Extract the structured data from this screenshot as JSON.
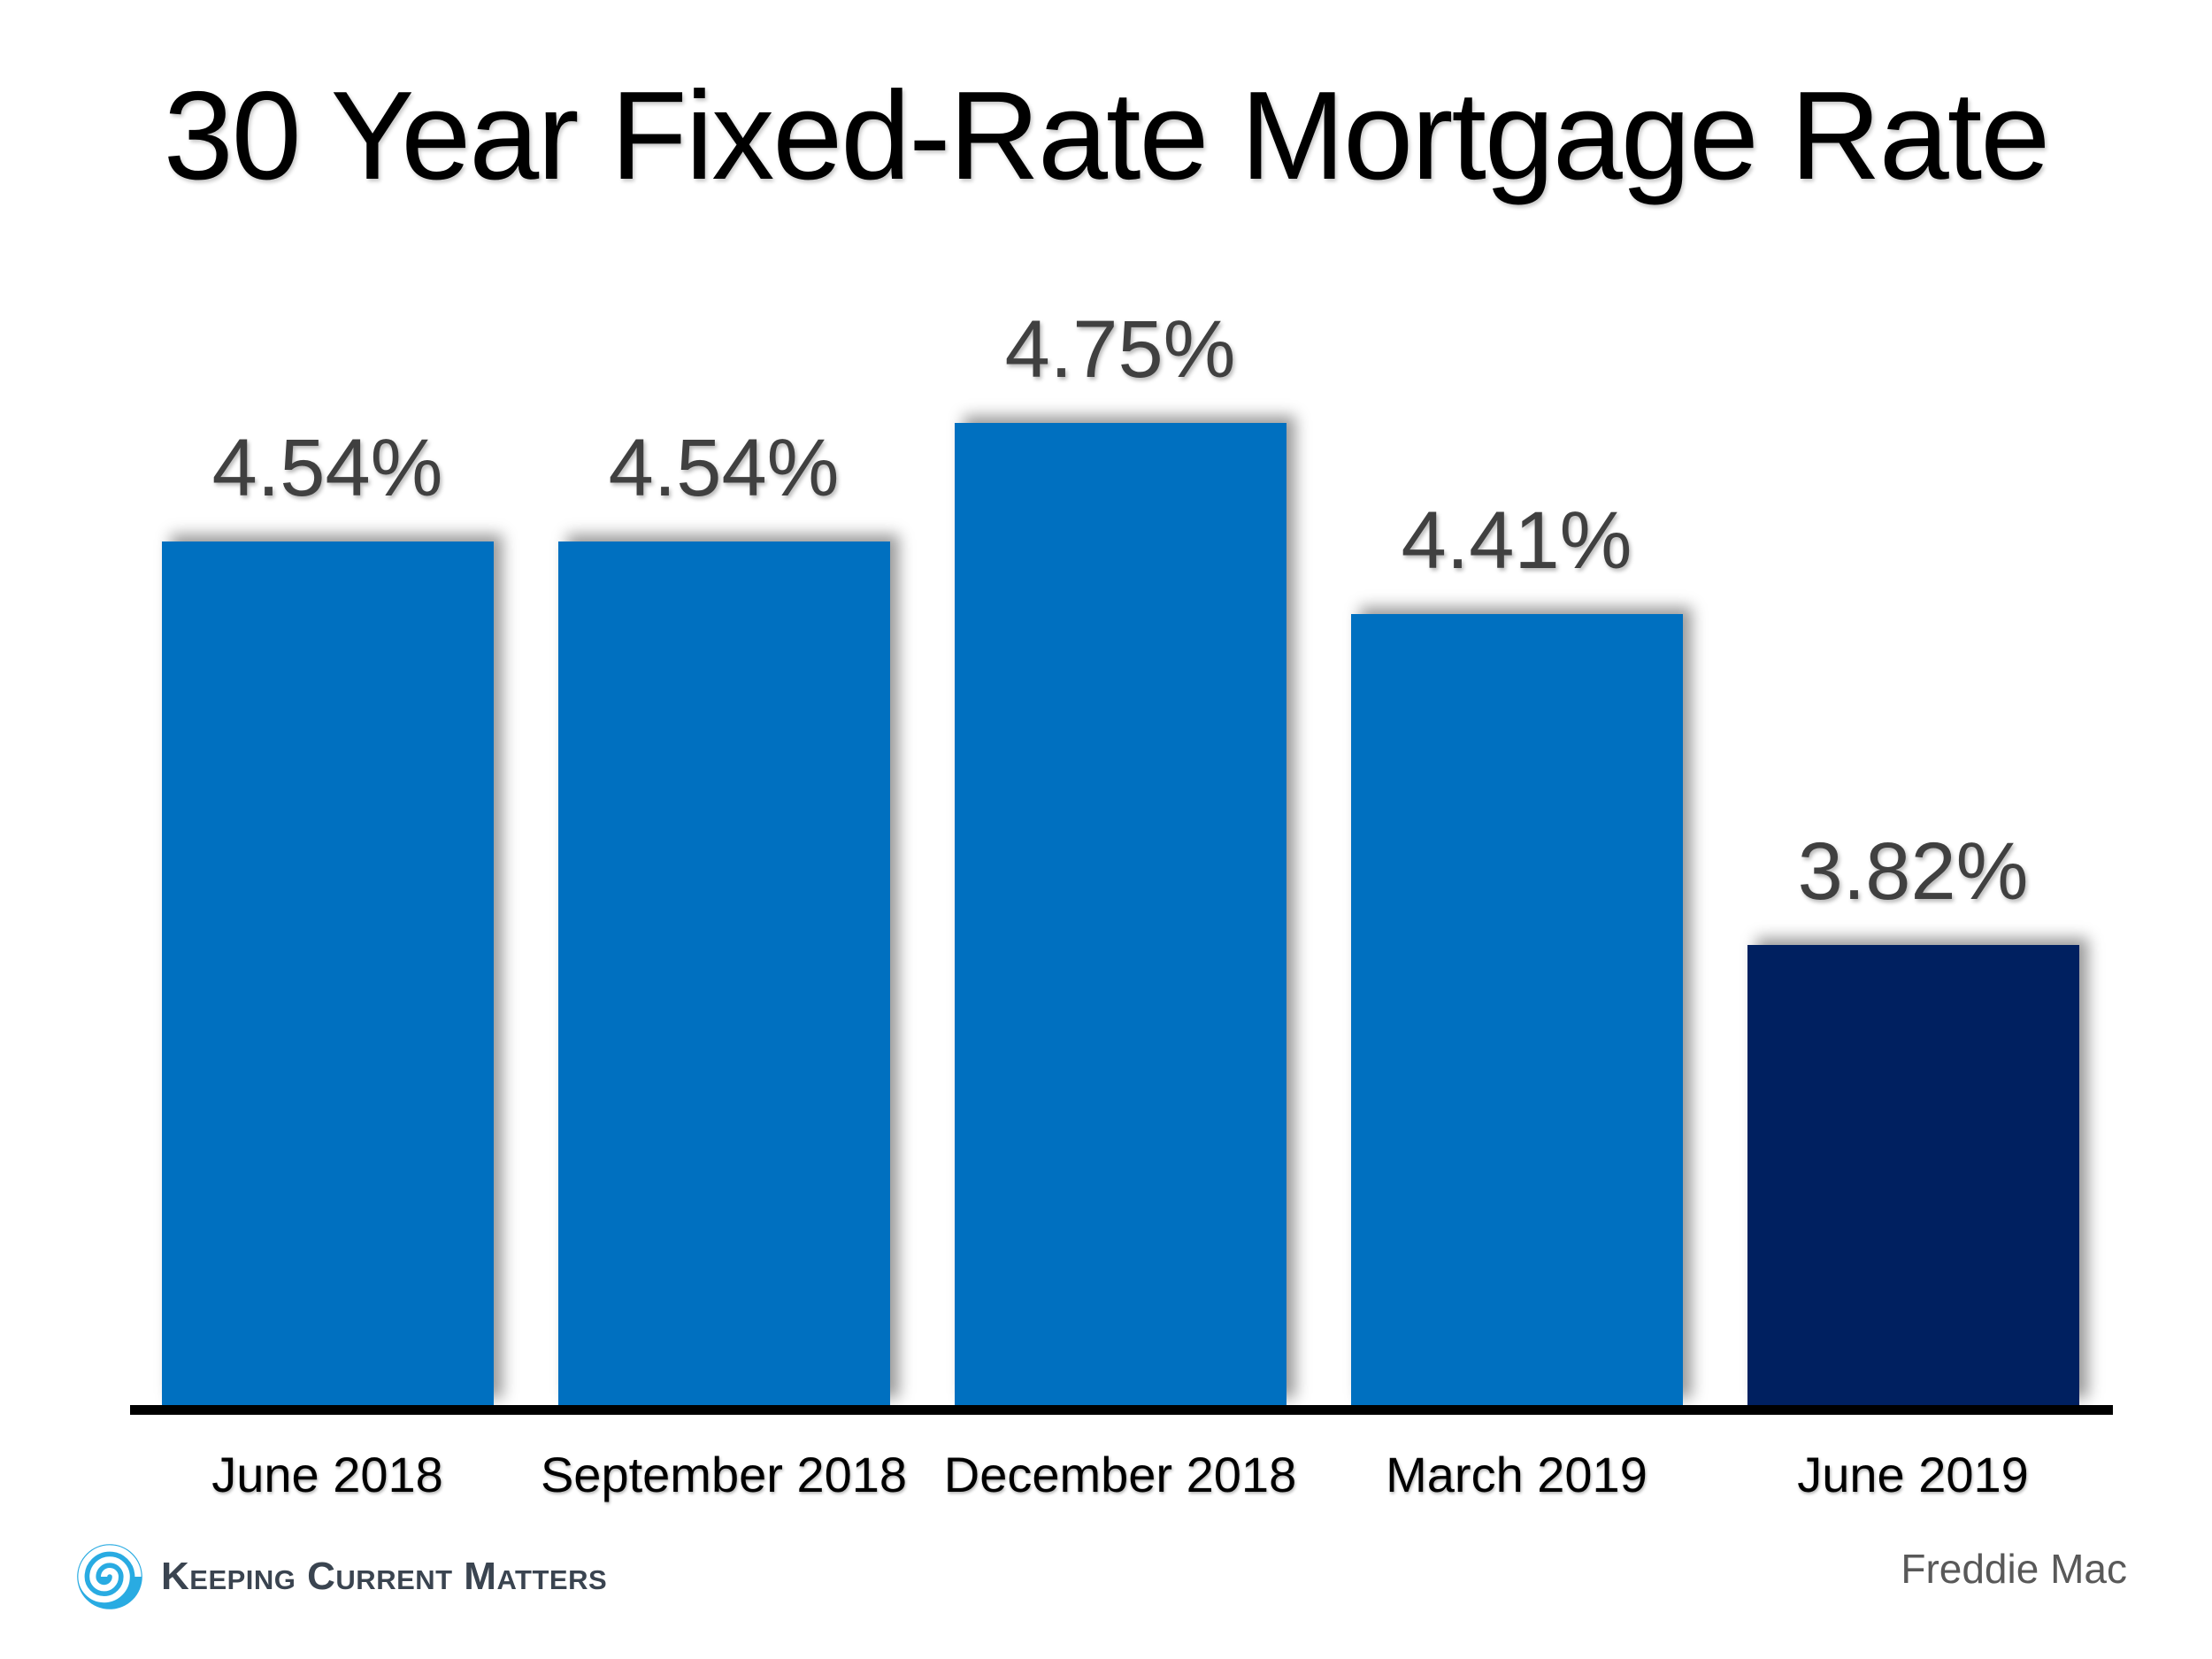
{
  "chart_data": {
    "type": "bar",
    "title": "30 Year Fixed-Rate Mortgage Rate",
    "categories": [
      "June 2018",
      "September 2018",
      "December 2018",
      "March 2019",
      "June 2019"
    ],
    "values": [
      4.54,
      4.54,
      4.75,
      4.41,
      3.82
    ],
    "value_labels": [
      "4.54%",
      "4.54%",
      "4.75%",
      "4.41%",
      "3.82%"
    ],
    "ylim": [
      3.0,
      5.0
    ],
    "grid": false,
    "legend_position": "none",
    "bar_colors": [
      "#0070C0",
      "#0070C0",
      "#0070C0",
      "#0070C0",
      "#002060"
    ],
    "value_label_color": "#404040",
    "axis_color": "#000000"
  },
  "footer": {
    "logo_text": "Keeping Current Matters",
    "logo_color": "#29ABE2",
    "source": "Freddie Mac"
  }
}
